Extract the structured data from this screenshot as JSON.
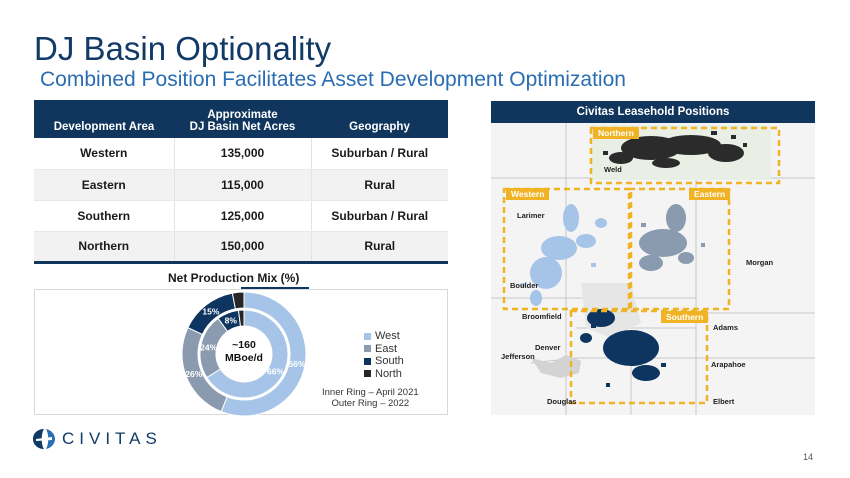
{
  "header": {
    "title": "DJ Basin Optionality",
    "subtitle": "Combined Position Facilitates Asset Development Optimization"
  },
  "table": {
    "columns": [
      "Development Area",
      "Approximate",
      "DJ Basin Net Acres",
      "Geography"
    ],
    "rows": [
      {
        "area": "Western",
        "acres": "135,000",
        "geography": "Suburban / Rural"
      },
      {
        "area": "Eastern",
        "acres": "115,000",
        "geography": "Rural"
      },
      {
        "area": "Southern",
        "acres": "125,000",
        "geography": "Suburban / Rural"
      },
      {
        "area": "Northern",
        "acres": "150,000",
        "geography": "Rural"
      }
    ]
  },
  "production_mix": {
    "title": "Net Production Mix (%)",
    "center_value": "~160",
    "center_unit": "MBoe/d",
    "legend": [
      "West",
      "East",
      "South",
      "North"
    ],
    "ring_note_1": "Inner Ring – April 2021",
    "ring_note_2": "Outer Ring – 2022",
    "inner_labels": [
      "66%",
      "24%",
      "8%"
    ],
    "outer_labels": [
      "56%",
      "26%",
      "15%"
    ]
  },
  "chart_data": {
    "type": "pie",
    "title": "Net Production Mix (%)",
    "categories": [
      "West",
      "East",
      "South",
      "North"
    ],
    "series": [
      {
        "name": "Inner Ring – April 2021",
        "values": [
          66,
          24,
          8,
          2
        ]
      },
      {
        "name": "Outer Ring – 2022",
        "values": [
          56,
          26,
          15,
          3
        ]
      }
    ],
    "colors": [
      "#a6c4e8",
      "#8a9bb0",
      "#0d3560",
      "#262626"
    ]
  },
  "map": {
    "header": "Civitas Leasehold Positions",
    "zones": {
      "northern": "Northern",
      "western": "Western",
      "eastern": "Eastern",
      "southern": "Southern"
    },
    "counties": {
      "weld": "Weld",
      "larimer": "Larimer",
      "morgan": "Morgan",
      "boulder": "Boulder",
      "broomfield": "Broomfield",
      "adams": "Adams",
      "denver": "Denver",
      "jefferson": "Jefferson",
      "arapahoe": "Arapahoe",
      "douglas": "Douglas",
      "elbert": "Elbert"
    }
  },
  "footer": {
    "brand": "CIVITAS",
    "page_number": "14"
  },
  "colors": {
    "navy": "#11365e",
    "accent_blue": "#2a6db3",
    "zone_yellow": "#f0b323"
  }
}
